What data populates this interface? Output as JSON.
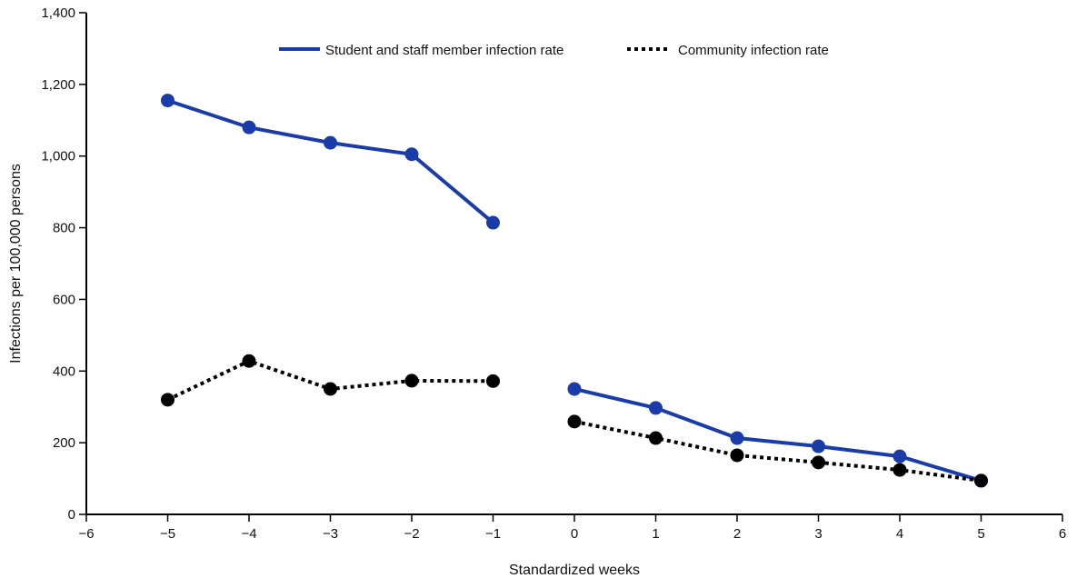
{
  "chart_data": {
    "type": "line",
    "title": "",
    "xlabel": "Standardized weeks",
    "ylabel": "Infections per 100,000 persons",
    "xlim": [
      -6,
      6
    ],
    "ylim": [
      0,
      1400
    ],
    "x_ticks": [
      -6,
      -5,
      -4,
      -3,
      -2,
      -1,
      0,
      1,
      2,
      3,
      4,
      5,
      6
    ],
    "x_tick_labels": [
      "−6",
      "−5",
      "−4",
      "−3",
      "−2",
      "−1",
      "0",
      "1",
      "2",
      "3",
      "4",
      "5",
      "6"
    ],
    "y_ticks": [
      0,
      200,
      400,
      600,
      800,
      1000,
      1200,
      1400
    ],
    "y_tick_labels": [
      "0",
      "200",
      "400",
      "600",
      "800",
      "1,000",
      "1,200",
      "1,400"
    ],
    "grid": false,
    "legend_placement": "top-center",
    "series": [
      {
        "name": "Student and staff member infection rate",
        "color": "#1a3ca8",
        "line_style": "solid",
        "segments": [
          {
            "x": [
              -5,
              -4,
              -3,
              -2,
              -1
            ],
            "y": [
              1155,
              1080,
              1037,
              1005,
              814
            ]
          },
          {
            "x": [
              0,
              1,
              2,
              3,
              4,
              5
            ],
            "y": [
              350,
              297,
              213,
              190,
              162,
              94
            ]
          }
        ]
      },
      {
        "name": "Community infection rate",
        "color": "#000000",
        "line_style": "dotted",
        "segments": [
          {
            "x": [
              -5,
              -4,
              -3,
              -2,
              -1
            ],
            "y": [
              320,
              428,
              350,
              373,
              372
            ]
          },
          {
            "x": [
              0,
              1,
              2,
              3,
              4,
              5
            ],
            "y": [
              259,
              213,
              165,
              145,
              124,
              94
            ]
          }
        ]
      }
    ]
  }
}
